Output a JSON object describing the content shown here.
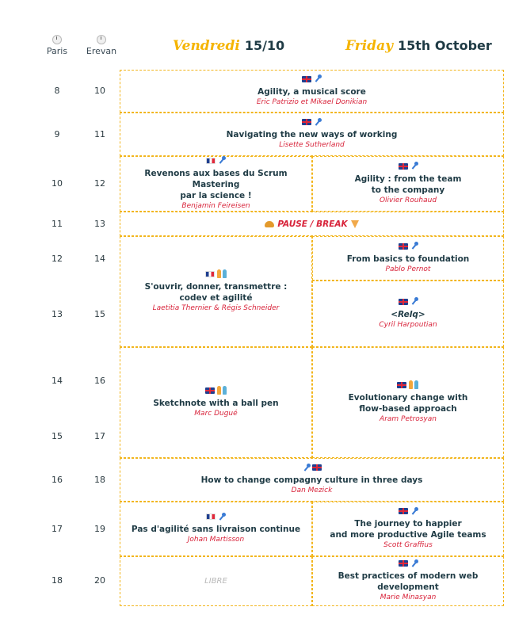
{
  "timezones": [
    {
      "name": "Paris",
      "icon": "clock-icon"
    },
    {
      "name": "Erevan",
      "icon": "clock-icon"
    }
  ],
  "days": [
    {
      "script": "Vendredi",
      "bold": "15/10"
    },
    {
      "script": "Friday",
      "bold": "15th October"
    }
  ],
  "hours": [
    {
      "paris": "8",
      "erevan": "10"
    },
    {
      "paris": "9",
      "erevan": "11"
    },
    {
      "paris": "10",
      "erevan": "12"
    },
    {
      "paris": "11",
      "erevan": "13"
    },
    {
      "paris": "12",
      "erevan": "14"
    },
    {
      "paris": "13",
      "erevan": "15"
    },
    {
      "paris": "14",
      "erevan": "16"
    },
    {
      "paris": "15",
      "erevan": "17"
    },
    {
      "paris": "16",
      "erevan": "18"
    },
    {
      "paris": "17",
      "erevan": "19"
    },
    {
      "paris": "18",
      "erevan": "20"
    }
  ],
  "sessions": {
    "s1": {
      "title": "Agility, a musical score",
      "speaker": "Eric Patrizio et Mikael Donikian",
      "flags": [
        "uk-flag",
        "microphone-icon"
      ]
    },
    "s2": {
      "title": "Navigating the new ways of working",
      "speaker": "Lisette Sutherland",
      "flags": [
        "uk-flag",
        "microphone-icon"
      ]
    },
    "s3": {
      "title_lines": [
        "Revenons aux bases du Scrum Mastering",
        "par la science !"
      ],
      "speaker": "Benjamin Feireisen",
      "flags": [
        "fr-flag",
        "microphone-icon"
      ]
    },
    "s4": {
      "title_lines": [
        "Agility : from the team",
        "to the company"
      ],
      "speaker": "Olivier Rouhaud",
      "flags": [
        "uk-flag",
        "microphone-icon"
      ]
    },
    "pause": {
      "label": "PAUSE / BREAK"
    },
    "s5": {
      "title_lines": [
        "S'ouvrir, donner, transmettre :",
        "codev et agilité"
      ],
      "speaker": "Laetitia Thernier & Régis Schneider",
      "flags": [
        "fr-flag",
        "people-icon"
      ]
    },
    "s6": {
      "title": "From basics to foundation",
      "speaker": "Pablo Pernot",
      "flags": [
        "uk-flag",
        "microphone-icon"
      ]
    },
    "s7": {
      "title": "<Relq>",
      "speaker": "Cyril Harpoutian",
      "flags": [
        "uk-flag",
        "microphone-icon"
      ]
    },
    "s8": {
      "title": "Sketchnote with a ball pen",
      "speaker": "Marc Dugué",
      "flags": [
        "uk-flag",
        "people-icon"
      ]
    },
    "s9": {
      "title_lines": [
        "Evolutionary change with",
        "flow-based approach"
      ],
      "speaker": "Aram Petrosyan",
      "flags": [
        "uk-flag",
        "people-icon"
      ]
    },
    "s10": {
      "title": "How to change compagny culture in three days",
      "speaker": "Dan Mezick",
      "flags": [
        "microphone-icon",
        "uk-flag"
      ]
    },
    "s11": {
      "title": "Pas d'agilité sans livraison continue",
      "speaker": "Johan Martisson",
      "flags": [
        "fr-flag",
        "microphone-icon"
      ]
    },
    "s12": {
      "title_lines": [
        "The journey to happier",
        "and more productive Agile teams"
      ],
      "speaker": "Scott Graffius",
      "flags": [
        "uk-flag",
        "microphone-icon"
      ]
    },
    "libre": {
      "label": "LIBRE"
    },
    "s13": {
      "title_lines": [
        "Best practices of modern web",
        "development"
      ],
      "speaker": "Marie Minasyan",
      "flags": [
        "uk-flag",
        "microphone-icon"
      ]
    }
  }
}
